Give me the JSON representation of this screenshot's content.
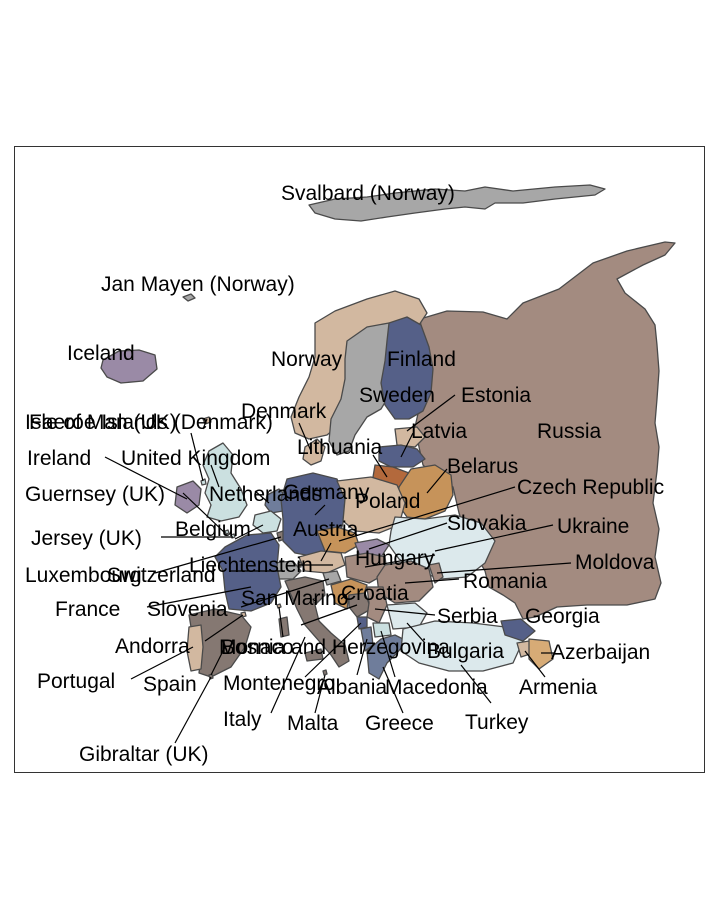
{
  "palette": {
    "brown": "#a38b80",
    "navy": "#556088",
    "gray": "#a7a7a7",
    "tan": "#d2b8a0",
    "lightblue": "#cbe0e0",
    "mauve": "#9a8aa6",
    "orange": "#c6935a",
    "rust": "#b3693c",
    "taupe": "#857872",
    "slate": "#6f7d9b",
    "pale": "#dce9ec",
    "sand": "#d7ab76"
  },
  "countries": [
    {
      "name": "Svalbard (Norway)",
      "fill": "gray"
    },
    {
      "name": "Jan Mayen (Norway)",
      "fill": "gray"
    },
    {
      "name": "Iceland",
      "fill": "mauve"
    },
    {
      "name": "Norway",
      "fill": "tan"
    },
    {
      "name": "Finland",
      "fill": "navy"
    },
    {
      "name": "Sweden",
      "fill": "gray"
    },
    {
      "name": "Estonia",
      "fill": "tan"
    },
    {
      "name": "Denmark",
      "fill": "tan"
    },
    {
      "name": "Faeroe Islands (Denmark)",
      "fill": "tan"
    },
    {
      "name": "Isle of Man (UK)",
      "fill": "lightblue"
    },
    {
      "name": "Latvia",
      "fill": "navy"
    },
    {
      "name": "Russia",
      "fill": "brown"
    },
    {
      "name": "Ireland",
      "fill": "mauve"
    },
    {
      "name": "United Kingdom",
      "fill": "lightblue"
    },
    {
      "name": "Lithuania",
      "fill": "rust"
    },
    {
      "name": "Belarus",
      "fill": "orange"
    },
    {
      "name": "Guernsey (UK)",
      "fill": "lightblue"
    },
    {
      "name": "Netherlands",
      "fill": "slate"
    },
    {
      "name": "Germany",
      "fill": "navy"
    },
    {
      "name": "Poland",
      "fill": "tan"
    },
    {
      "name": "Czech Republic",
      "fill": "orange"
    },
    {
      "name": "Belgium",
      "fill": "lightblue"
    },
    {
      "name": "Slovakia",
      "fill": "mauve"
    },
    {
      "name": "Ukraine",
      "fill": "pale"
    },
    {
      "name": "Jersey (UK)",
      "fill": "lightblue"
    },
    {
      "name": "Austria",
      "fill": "tan"
    },
    {
      "name": "Liechtenstein",
      "fill": "tan"
    },
    {
      "name": "Hungary",
      "fill": "brown"
    },
    {
      "name": "Moldova",
      "fill": "brown"
    },
    {
      "name": "Luxembourg",
      "fill": "taupe"
    },
    {
      "name": "Switzerland",
      "fill": "gray"
    },
    {
      "name": "Romania",
      "fill": "brown"
    },
    {
      "name": "France",
      "fill": "navy"
    },
    {
      "name": "Croatia",
      "fill": "orange"
    },
    {
      "name": "San Marino",
      "fill": "tan"
    },
    {
      "name": "Slovenia",
      "fill": "gray"
    },
    {
      "name": "Serbia",
      "fill": "brown"
    },
    {
      "name": "Georgia",
      "fill": "navy"
    },
    {
      "name": "Andorra",
      "fill": "tan"
    },
    {
      "name": "Monaco",
      "fill": "tan"
    },
    {
      "name": "Bosnia and Herzegovina",
      "fill": "taupe"
    },
    {
      "name": "Bulgaria",
      "fill": "pale"
    },
    {
      "name": "Azerbaijan",
      "fill": "sand"
    },
    {
      "name": "Portugal",
      "fill": "tan"
    },
    {
      "name": "Spain",
      "fill": "taupe"
    },
    {
      "name": "Montenegro",
      "fill": "navy"
    },
    {
      "name": "Albania",
      "fill": "slate"
    },
    {
      "name": "Macedonia",
      "fill": "lightblue"
    },
    {
      "name": "Armenia",
      "fill": "tan"
    },
    {
      "name": "Italy",
      "fill": "taupe"
    },
    {
      "name": "Malta",
      "fill": "taupe"
    },
    {
      "name": "Greece",
      "fill": "slate"
    },
    {
      "name": "Turkey",
      "fill": "pale"
    },
    {
      "name": "Gibraltar (UK)",
      "fill": "taupe"
    }
  ]
}
